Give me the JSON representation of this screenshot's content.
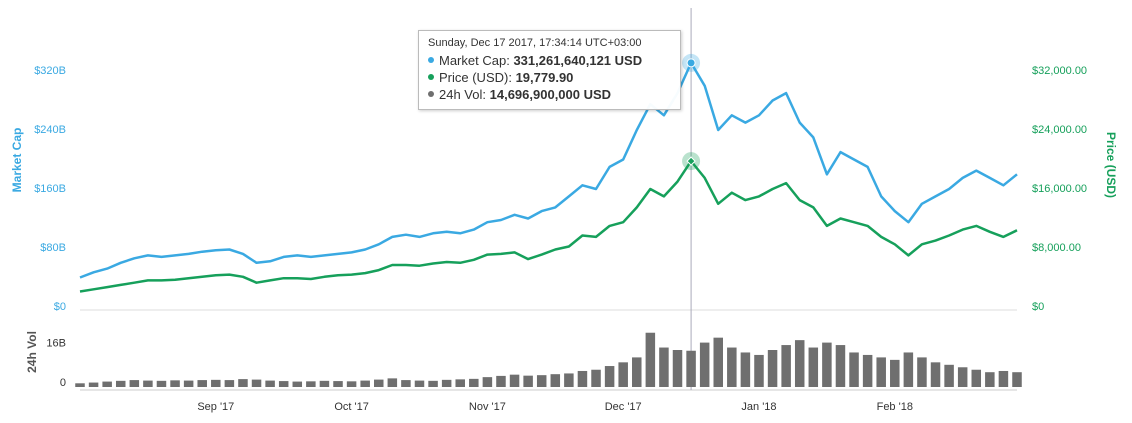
{
  "chart_data": [
    {
      "type": "line",
      "y_label": "Market Cap",
      "y2_label": "Price (USD)",
      "ylim": [
        0,
        400
      ],
      "yticks": [
        {
          "value": 0,
          "label": "$0"
        },
        {
          "value": 80,
          "label": "$80B"
        },
        {
          "value": 160,
          "label": "$160B"
        },
        {
          "value": 240,
          "label": "$240B"
        },
        {
          "value": 320,
          "label": "$320B"
        }
      ],
      "y2lim": [
        0,
        40000
      ],
      "y2ticks": [
        {
          "value": 0,
          "label": "$0"
        },
        {
          "value": 8000,
          "label": "$8,000.00"
        },
        {
          "value": 16000,
          "label": "$16,000.00"
        },
        {
          "value": 24000,
          "label": "$24,000.00"
        },
        {
          "value": 32000,
          "label": "$32,000.00"
        }
      ],
      "series": [
        {
          "name": "Market Cap",
          "color": "#3aa9e2",
          "values": [
            40,
            47,
            52,
            60,
            66,
            70,
            68,
            70,
            72,
            75,
            77,
            78,
            72,
            60,
            62,
            68,
            70,
            68,
            70,
            72,
            74,
            78,
            85,
            95,
            98,
            95,
            100,
            102,
            100,
            105,
            115,
            118,
            125,
            120,
            130,
            135,
            150,
            165,
            160,
            190,
            200,
            240,
            275,
            260,
            290,
            331,
            300,
            240,
            260,
            250,
            260,
            280,
            290,
            250,
            230,
            180,
            210,
            200,
            190,
            150,
            130,
            115,
            140,
            150,
            160,
            175,
            185,
            175,
            165,
            180
          ]
        },
        {
          "name": "Price (USD)",
          "color": "#16a05b",
          "axis": "y2",
          "values": [
            2100,
            2400,
            2700,
            3000,
            3300,
            3600,
            3600,
            3700,
            3900,
            4100,
            4300,
            4400,
            4100,
            3300,
            3600,
            3900,
            3900,
            3800,
            4100,
            4300,
            4400,
            4600,
            5000,
            5700,
            5700,
            5600,
            5900,
            6100,
            6000,
            6400,
            7100,
            7200,
            7400,
            6500,
            7100,
            7800,
            8200,
            9700,
            9500,
            11000,
            11500,
            13500,
            16000,
            15000,
            17000,
            19780,
            17500,
            14000,
            15500,
            14500,
            15000,
            16000,
            16800,
            14500,
            13500,
            11000,
            12000,
            11500,
            11000,
            9500,
            8500,
            7000,
            8500,
            9000,
            9700,
            10500,
            11000,
            10200,
            9500,
            10400
          ]
        }
      ]
    },
    {
      "type": "bar",
      "y_label": "24h Vol",
      "ylim": [
        0,
        30
      ],
      "yticks": [
        0,
        {
          "value": 16,
          "label": "16B"
        }
      ],
      "categories": [
        null,
        null,
        null,
        null,
        null,
        null,
        null,
        null,
        null,
        null,
        "Sep '17",
        null,
        null,
        null,
        null,
        null,
        null,
        null,
        null,
        null,
        "Oct '17",
        null,
        null,
        null,
        null,
        null,
        null,
        null,
        null,
        null,
        "Nov '17",
        null,
        null,
        null,
        null,
        null,
        null,
        null,
        null,
        null,
        "Dec '17",
        null,
        null,
        null,
        null,
        null,
        null,
        null,
        null,
        null,
        "Jan '18",
        null,
        null,
        null,
        null,
        null,
        null,
        null,
        null,
        null,
        "Feb '18",
        null,
        null,
        null,
        null,
        null,
        null,
        null,
        null,
        null
      ],
      "series": [
        {
          "name": "24h Vol",
          "color": "#6f6f6f",
          "values": [
            1.5,
            1.8,
            2.2,
            2.5,
            2.8,
            2.6,
            2.5,
            2.7,
            2.6,
            2.8,
            2.9,
            2.8,
            3.2,
            3.0,
            2.6,
            2.4,
            2.2,
            2.3,
            2.5,
            2.4,
            2.3,
            2.6,
            3.0,
            3.5,
            2.8,
            2.6,
            2.5,
            2.9,
            3.1,
            3.3,
            4.0,
            4.5,
            5.0,
            4.6,
            4.8,
            5.2,
            5.5,
            6.5,
            7.0,
            8.5,
            10,
            12,
            22,
            16,
            15,
            14.7,
            18,
            20,
            16,
            14,
            13,
            15,
            17,
            19,
            16,
            18,
            17,
            14,
            13,
            12,
            11,
            14,
            12,
            10,
            9,
            8,
            7,
            6,
            6.5,
            6
          ]
        }
      ]
    }
  ],
  "tooltip": {
    "title": "Sunday, Dec 17 2017, 17:34:14 UTC+03:00",
    "rows": [
      {
        "label": "Market Cap:",
        "value": "331,261,640,121 USD"
      },
      {
        "label": "Price (USD):",
        "value": "19,779.90"
      },
      {
        "label": "24h Vol:",
        "value": "14,696,900,000 USD"
      }
    ]
  }
}
